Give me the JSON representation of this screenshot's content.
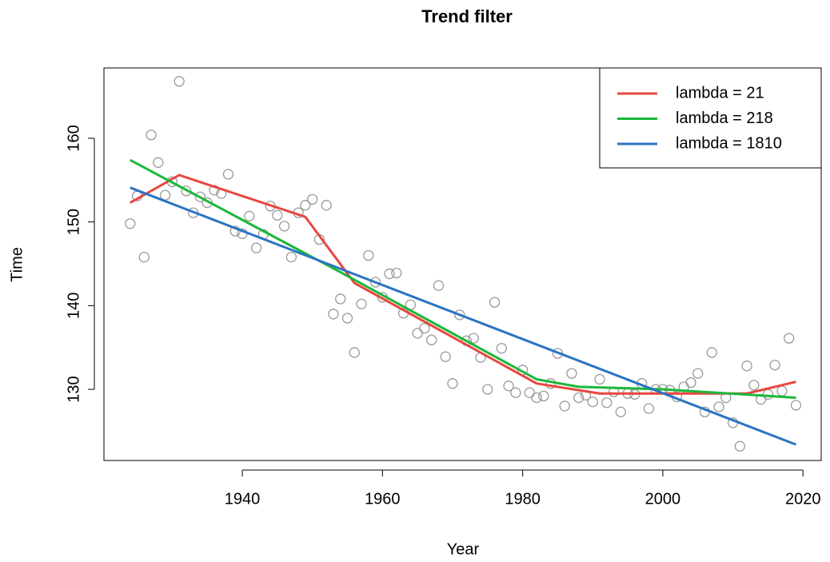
{
  "chart_data": {
    "type": "scatter",
    "title": "Trend filter",
    "x_label": "Year",
    "y_label": "Time",
    "point_color": "#999999",
    "x": [
      1924,
      1925,
      1926,
      1927,
      1928,
      1929,
      1930,
      1931,
      1932,
      1933,
      1934,
      1935,
      1936,
      1937,
      1938,
      1939,
      1940,
      1941,
      1942,
      1943,
      1944,
      1945,
      1946,
      1947,
      1948,
      1949,
      1950,
      1951,
      1952,
      1953,
      1954,
      1955,
      1956,
      1957,
      1958,
      1959,
      1960,
      1961,
      1962,
      1963,
      1964,
      1965,
      1966,
      1967,
      1968,
      1969,
      1970,
      1971,
      1972,
      1973,
      1974,
      1975,
      1976,
      1977,
      1978,
      1979,
      1980,
      1981,
      1982,
      1983,
      1984,
      1985,
      1986,
      1987,
      1988,
      1989,
      1990,
      1991,
      1992,
      1993,
      1994,
      1995,
      1996,
      1997,
      1998,
      1999,
      2000,
      2001,
      2002,
      2003,
      2004,
      2005,
      2006,
      2007,
      2008,
      2009,
      2010,
      2011,
      2012,
      2013,
      2014,
      2015,
      2016,
      2017,
      2018,
      2019
    ],
    "values": [
      149.8,
      153.1,
      145.8,
      160.4,
      157.1,
      153.2,
      154.8,
      166.8,
      153.7,
      151.1,
      153.0,
      152.3,
      153.8,
      153.4,
      155.7,
      148.9,
      148.6,
      150.7,
      146.9,
      148.5,
      151.9,
      150.8,
      149.5,
      145.8,
      151.1,
      152.0,
      152.7,
      147.9,
      152.0,
      139.0,
      140.8,
      138.5,
      134.4,
      140.2,
      146.0,
      142.8,
      141.0,
      143.8,
      143.9,
      139.1,
      140.1,
      136.7,
      137.3,
      135.9,
      142.4,
      133.9,
      130.7,
      138.9,
      135.8,
      136.1,
      133.8,
      130.0,
      140.4,
      134.9,
      130.4,
      129.6,
      132.3,
      129.6,
      129.0,
      129.2,
      130.7,
      134.3,
      128.0,
      131.9,
      129.0,
      129.3,
      128.5,
      131.2,
      128.4,
      129.7,
      127.3,
      129.5,
      129.4,
      130.7,
      127.7,
      130.0,
      130.0,
      129.9,
      129.1,
      130.3,
      130.8,
      131.9,
      127.3,
      134.4,
      127.9,
      129.0,
      126.0,
      123.2,
      132.8,
      130.5,
      128.8,
      129.4,
      132.9,
      129.8,
      136.1,
      128.1
    ],
    "lines": [
      {
        "name": "lambda = 21",
        "color": "#e8473f",
        "x": [
          1924,
          1931,
          1949,
          1956,
          1982,
          1991,
          2012,
          2019
        ],
        "values": [
          152.3,
          155.6,
          150.6,
          142.7,
          130.7,
          129.5,
          129.5,
          130.9
        ]
      },
      {
        "name": "lambda = 218",
        "color": "#1bb83a",
        "x": [
          1924,
          1954,
          1982,
          1988,
          2000,
          2019
        ],
        "values": [
          157.4,
          144.0,
          131.2,
          130.3,
          130.0,
          129.0
        ]
      },
      {
        "name": "lambda = 1810",
        "color": "#2a74c2",
        "x": [
          1924,
          2019
        ],
        "values": [
          154.1,
          123.4
        ]
      }
    ],
    "xlim": [
      1920.26,
      2022.6
    ],
    "ylim": [
      121.5,
      168.4
    ],
    "xticks": [
      1940,
      1960,
      1980,
      2000,
      2020
    ],
    "yticks": [
      130,
      140,
      150,
      160
    ],
    "grid": false,
    "legend": "top-right"
  }
}
